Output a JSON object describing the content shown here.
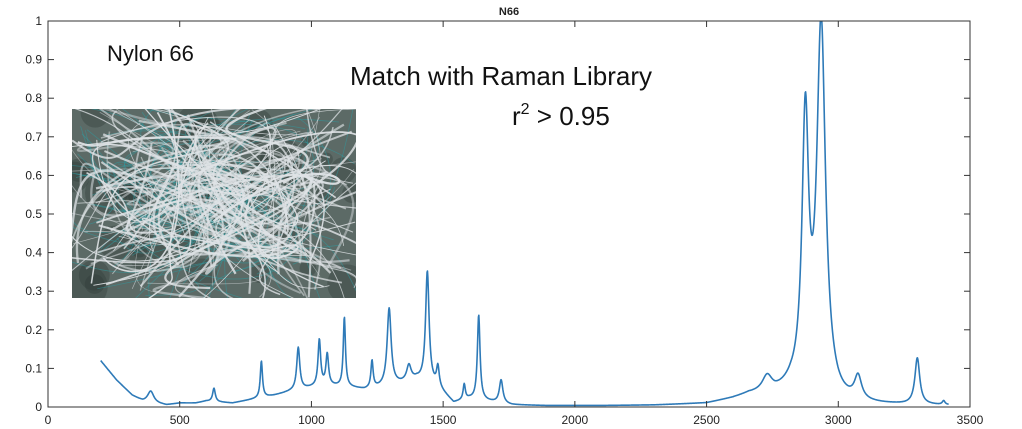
{
  "chart_data": {
    "type": "line",
    "title": "N66",
    "xlabel": "",
    "ylabel": "",
    "xlim": [
      0,
      3500
    ],
    "ylim": [
      0,
      1
    ],
    "x_ticks": [
      0,
      500,
      1000,
      1500,
      2000,
      2500,
      3000,
      3500
    ],
    "y_ticks": [
      0,
      0.1,
      0.2,
      0.3,
      0.4,
      0.5,
      0.6,
      0.7,
      0.8,
      0.9,
      1
    ],
    "y_tick_labels": [
      "0",
      "0.1",
      "0.2",
      "0.3",
      "0.4",
      "0.5",
      "0.6",
      "0.7",
      "0.8",
      "0.9",
      "1"
    ],
    "grid": false,
    "series_color": "#2e7ab8",
    "baseline": [
      [
        200,
        0.12
      ],
      [
        260,
        0.07
      ],
      [
        320,
        0.03
      ],
      [
        360,
        0.015
      ],
      [
        400,
        0.01
      ],
      [
        450,
        0.005
      ],
      [
        500,
        0.01
      ],
      [
        560,
        0.01
      ],
      [
        600,
        0.015
      ],
      [
        700,
        0.01
      ],
      [
        780,
        0.02
      ],
      [
        860,
        0.03
      ],
      [
        920,
        0.04
      ],
      [
        1000,
        0.05
      ],
      [
        1060,
        0.055
      ],
      [
        1150,
        0.05
      ],
      [
        1200,
        0.045
      ],
      [
        1260,
        0.05
      ],
      [
        1340,
        0.06
      ],
      [
        1400,
        0.07
      ],
      [
        1480,
        0.05
      ],
      [
        1540,
        0.01
      ],
      [
        1600,
        0.02
      ],
      [
        1660,
        0.015
      ],
      [
        1760,
        0.005
      ],
      [
        1900,
        0.003
      ],
      [
        2100,
        0.003
      ],
      [
        2300,
        0.004
      ],
      [
        2500,
        0.008
      ],
      [
        2600,
        0.02
      ],
      [
        2660,
        0.03
      ],
      [
        2760,
        0.03
      ],
      [
        2820,
        0.04
      ],
      [
        3000,
        0.005
      ],
      [
        3100,
        0.004
      ],
      [
        3200,
        0.004
      ],
      [
        3420,
        0.003
      ]
    ],
    "peaks": [
      [
        390,
        0.03,
        14
      ],
      [
        630,
        0.035,
        6
      ],
      [
        810,
        0.095,
        5
      ],
      [
        950,
        0.11,
        7
      ],
      [
        1030,
        0.12,
        6
      ],
      [
        1060,
        0.08,
        6
      ],
      [
        1125,
        0.18,
        5
      ],
      [
        1230,
        0.07,
        5
      ],
      [
        1295,
        0.2,
        9
      ],
      [
        1370,
        0.04,
        10
      ],
      [
        1440,
        0.29,
        8
      ],
      [
        1480,
        0.05,
        6
      ],
      [
        1580,
        0.04,
        5
      ],
      [
        1635,
        0.22,
        6
      ],
      [
        1720,
        0.06,
        8
      ],
      [
        2730,
        0.04,
        22
      ],
      [
        2875,
        0.69,
        15
      ],
      [
        2935,
        0.96,
        20
      ],
      [
        3075,
        0.06,
        16
      ],
      [
        3300,
        0.12,
        11
      ],
      [
        3400,
        0.01,
        6
      ]
    ]
  },
  "annotations": {
    "sample_name": "Nylon 66",
    "match_line1": "Match with Raman Library",
    "r_symbol": "r",
    "r_superscript": "2",
    "r_rest": " > 0.95"
  },
  "photo": {
    "icon": "nylon-fiber-photo",
    "colors": {
      "base": "#5c6a66",
      "fiber": "#dfe3e6",
      "teal": "#2f9aa0",
      "dark": "#2f3a36"
    }
  }
}
